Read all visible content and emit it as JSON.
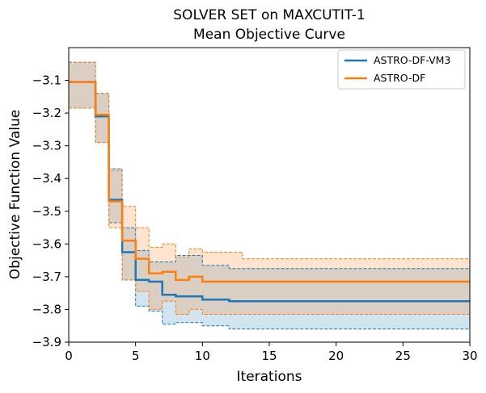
{
  "chart_data": {
    "type": "line",
    "title_line1": "SOLVER SET on MAXCUTIT-1",
    "title_line2": "Mean Objective Curve",
    "xlabel": "Iterations",
    "ylabel": "Objective Function Value",
    "xlim": [
      0,
      30
    ],
    "ylim": [
      -3.9,
      -3.0
    ],
    "xticks": [
      0,
      5,
      10,
      15,
      20,
      25,
      30
    ],
    "xtick_labels": [
      "0",
      "5",
      "10",
      "15",
      "20",
      "25",
      "30"
    ],
    "yticks": [
      -3.1,
      -3.2,
      -3.3,
      -3.4,
      -3.5,
      -3.6,
      -3.7,
      -3.8,
      -3.9
    ],
    "ytick_labels": [
      "−3.1",
      "−3.2",
      "−3.3",
      "−3.4",
      "−3.5",
      "−3.6",
      "−3.7",
      "−3.8",
      "−3.9"
    ],
    "grid": false,
    "legend_position": "top-right",
    "step_style": "post",
    "series": [
      {
        "name": "ASTRO-DF-VM3",
        "color": "#1f77b4",
        "fill": "#1f77b4",
        "x": [
          0,
          2,
          3,
          4,
          5,
          6,
          7,
          8,
          10,
          12,
          30
        ],
        "mean": [
          -3.105,
          -3.21,
          -3.465,
          -3.625,
          -3.71,
          -3.715,
          -3.755,
          -3.76,
          -3.77,
          -3.775,
          -3.775
        ],
        "lower": [
          -3.185,
          -3.29,
          -3.535,
          -3.71,
          -3.79,
          -3.805,
          -3.845,
          -3.84,
          -3.85,
          -3.86,
          -3.86
        ],
        "upper": [
          -3.045,
          -3.14,
          -3.37,
          -3.55,
          -3.62,
          -3.655,
          -3.655,
          -3.635,
          -3.665,
          -3.675,
          -3.675
        ]
      },
      {
        "name": "ASTRO-DF",
        "color": "#ff7f0e",
        "fill": "#ff7f0e",
        "x": [
          0,
          2,
          3,
          4,
          5,
          6,
          7,
          8,
          9,
          10,
          13,
          30
        ],
        "mean": [
          -3.105,
          -3.205,
          -3.47,
          -3.59,
          -3.645,
          -3.69,
          -3.685,
          -3.71,
          -3.7,
          -3.715,
          -3.715,
          -3.715
        ],
        "lower": [
          -3.185,
          -3.29,
          -3.55,
          -3.71,
          -3.745,
          -3.8,
          -3.775,
          -3.815,
          -3.8,
          -3.815,
          -3.815,
          -3.815
        ],
        "upper": [
          -3.045,
          -3.14,
          -3.375,
          -3.485,
          -3.55,
          -3.61,
          -3.6,
          -3.64,
          -3.615,
          -3.625,
          -3.645,
          -3.645
        ]
      }
    ]
  }
}
